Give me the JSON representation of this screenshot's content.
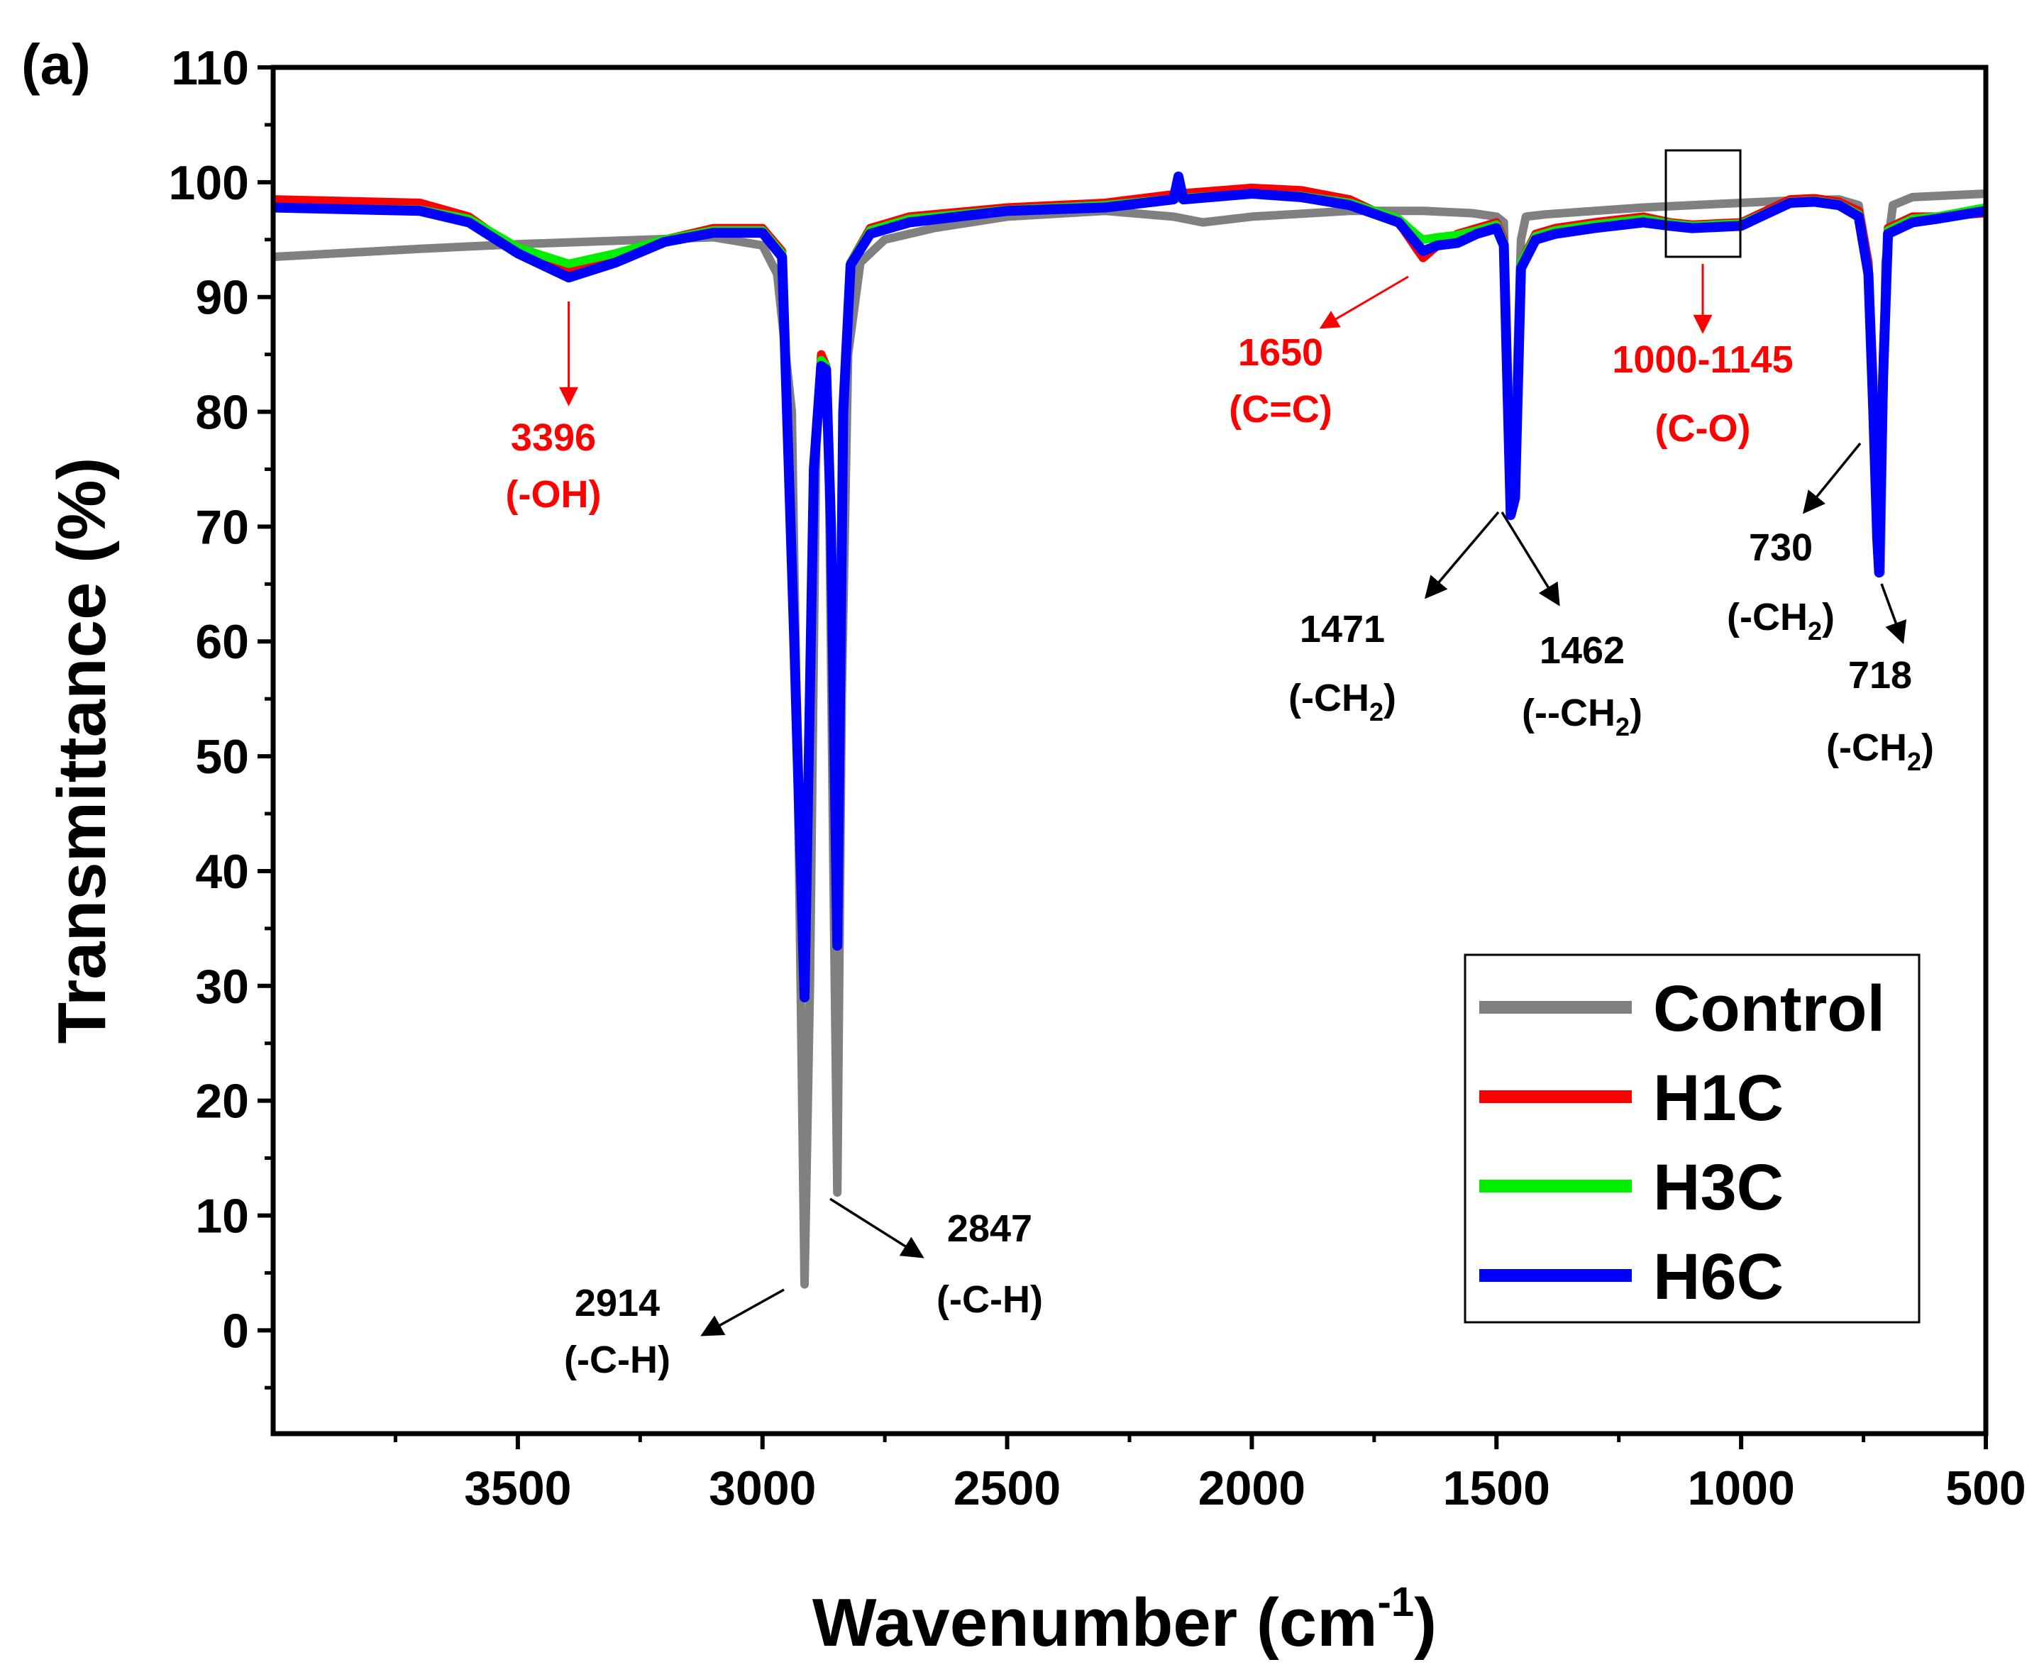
{
  "chart_data": {
    "type": "line",
    "panel_label": "(a)",
    "xlabel": "Wavenumber (cm",
    "xlabel_sup": "-1",
    "xlabel_tail": ")",
    "ylabel": "Transmittance (%)",
    "xlim": [
      4000,
      500
    ],
    "ylim": [
      -9,
      110
    ],
    "x_ticks": [
      3500,
      3000,
      2500,
      2000,
      1500,
      1000,
      500
    ],
    "y_ticks": [
      0,
      10,
      20,
      30,
      40,
      50,
      60,
      70,
      80,
      90,
      100,
      110
    ],
    "grid": false,
    "legend_position": "bottom-right",
    "colors": {
      "Control": "#808080",
      "H1C": "#ff0000",
      "H3C": "#00ee00",
      "H6C": "#0000ff",
      "red_annotation": "#ff0000",
      "black_annotation": "#000000"
    },
    "series": [
      {
        "name": "Control",
        "x": [
          4000,
          3700,
          3500,
          3300,
          3100,
          3000,
          2970,
          2940,
          2925,
          2914,
          2903,
          2890,
          2875,
          2865,
          2855,
          2847,
          2838,
          2825,
          2800,
          2750,
          2650,
          2500,
          2300,
          2160,
          2100,
          2000,
          1800,
          1650,
          1550,
          1500,
          1485,
          1471,
          1462,
          1450,
          1440,
          1400,
          1300,
          1200,
          1100,
          1000,
          900,
          800,
          760,
          740,
          730,
          722,
          715,
          705,
          690,
          650,
          500
        ],
        "y": [
          93.5,
          94.2,
          94.6,
          94.9,
          95.2,
          94.5,
          92,
          80,
          40,
          4,
          30,
          78,
          84,
          78,
          40,
          12,
          55,
          85,
          93,
          95,
          96,
          97,
          97.5,
          97,
          96.5,
          97,
          97.5,
          97.5,
          97.3,
          97,
          96.5,
          72,
          78,
          95,
          97,
          97.2,
          97.5,
          97.8,
          98,
          98.2,
          98.4,
          98.5,
          98,
          93,
          83,
          70,
          66,
          93,
          98,
          98.7,
          99
        ]
      },
      {
        "name": "H1C",
        "x": [
          4000,
          3700,
          3600,
          3500,
          3396,
          3300,
          3200,
          3100,
          3000,
          2960,
          2935,
          2914,
          2895,
          2880,
          2870,
          2860,
          2847,
          2835,
          2820,
          2780,
          2700,
          2500,
          2300,
          2150,
          2000,
          1900,
          1800,
          1700,
          1660,
          1650,
          1620,
          1580,
          1540,
          1500,
          1485,
          1471,
          1462,
          1450,
          1420,
          1380,
          1300,
          1200,
          1145,
          1100,
          1000,
          950,
          900,
          850,
          800,
          760,
          740,
          730,
          722,
          718,
          710,
          700,
          650,
          600,
          500
        ],
        "y": [
          98.5,
          98.2,
          97,
          94,
          92.5,
          93.5,
          95,
          96,
          96,
          94,
          60,
          30,
          75,
          85,
          84,
          70,
          34,
          80,
          93,
          96,
          97,
          97.8,
          98.2,
          99,
          99.5,
          99.3,
          98.5,
          96.5,
          94,
          93.4,
          94.5,
          95.5,
          96,
          96.5,
          95,
          72,
          74,
          93,
          95.5,
          96,
          96.5,
          97,
          96.5,
          96.3,
          96.5,
          97.5,
          98.5,
          98.6,
          98.3,
          97.5,
          93,
          82,
          70,
          66,
          85,
          96,
          97,
          97,
          97.3
        ]
      },
      {
        "name": "H3C",
        "x": [
          4000,
          3700,
          3600,
          3500,
          3396,
          3300,
          3200,
          3100,
          3000,
          2960,
          2935,
          2914,
          2895,
          2880,
          2870,
          2860,
          2847,
          2835,
          2820,
          2780,
          2700,
          2500,
          2300,
          2150,
          2000,
          1900,
          1800,
          1700,
          1660,
          1650,
          1620,
          1580,
          1540,
          1500,
          1485,
          1471,
          1462,
          1450,
          1420,
          1380,
          1300,
          1200,
          1145,
          1100,
          1000,
          950,
          900,
          850,
          800,
          760,
          740,
          730,
          722,
          718,
          710,
          700,
          650,
          600,
          500
        ],
        "y": [
          97.8,
          97.6,
          96.8,
          94.3,
          92.9,
          93.8,
          95,
          95.8,
          95.8,
          93.8,
          60,
          29.5,
          75,
          84.5,
          84,
          70,
          33.5,
          80,
          93,
          95.8,
          96.8,
          97.6,
          98,
          98.6,
          99,
          98.8,
          98.2,
          96.8,
          95.3,
          95,
          95.2,
          95.4,
          95.8,
          96.3,
          94.8,
          71.5,
          73.5,
          93,
          95.3,
          95.8,
          96.3,
          96.8,
          96.4,
          96.2,
          96.4,
          97.3,
          98.3,
          98.4,
          98.1,
          97.2,
          92.5,
          81,
          69.5,
          66,
          84,
          95.8,
          96.8,
          97,
          97.8
        ]
      },
      {
        "name": "H6C",
        "x": [
          4000,
          3700,
          3600,
          3500,
          3396,
          3300,
          3200,
          3100,
          3000,
          2960,
          2935,
          2914,
          2895,
          2880,
          2870,
          2860,
          2847,
          2835,
          2820,
          2780,
          2700,
          2500,
          2300,
          2160,
          2150,
          2140,
          2000,
          1900,
          1800,
          1700,
          1660,
          1650,
          1620,
          1580,
          1540,
          1500,
          1485,
          1471,
          1462,
          1450,
          1420,
          1380,
          1300,
          1200,
          1145,
          1100,
          1000,
          950,
          900,
          850,
          800,
          760,
          740,
          730,
          722,
          718,
          710,
          700,
          650,
          600,
          500
        ],
        "y": [
          97.8,
          97.5,
          96.5,
          93.8,
          91.7,
          93,
          94.8,
          95.6,
          95.6,
          93.5,
          60,
          29,
          75,
          84,
          83.7,
          70,
          33.5,
          80,
          92.8,
          95.5,
          96.5,
          97.5,
          97.8,
          98.5,
          100.5,
          98.5,
          99,
          98.7,
          98,
          96.5,
          94.5,
          94,
          94.5,
          94.7,
          95.5,
          96,
          94.5,
          71,
          72.5,
          92.5,
          95,
          95.5,
          96,
          96.5,
          96.2,
          96,
          96.2,
          97.2,
          98.2,
          98.3,
          98,
          97,
          92,
          80,
          69,
          66,
          83,
          95.5,
          96.5,
          96.8,
          97.5
        ]
      }
    ],
    "annotations": [
      {
        "id": "oh",
        "lines": [
          "3396",
          "(-OH)"
        ],
        "color": "red",
        "at": [
          3396,
          92
        ]
      },
      {
        "id": "cc",
        "lines": [
          "1650",
          "(C=C)"
        ],
        "color": "red",
        "at": [
          1650,
          93.4
        ]
      },
      {
        "id": "co",
        "lines": [
          "1000-1145",
          "(C-O)"
        ],
        "color": "red",
        "range": [
          1145,
          1000
        ]
      },
      {
        "id": "ch2914",
        "lines": [
          "2914",
          "(-C-H)"
        ],
        "color": "black",
        "at": [
          2914,
          4
        ]
      },
      {
        "id": "ch2847",
        "lines": [
          "2847",
          "(-C-H)"
        ],
        "color": "black",
        "at": [
          2847,
          12
        ]
      },
      {
        "id": "ch1471",
        "lines": [
          "1471",
          "(-CH",
          "2",
          ")"
        ],
        "color": "black",
        "at": [
          1471,
          71
        ]
      },
      {
        "id": "ch1462",
        "lines": [
          "1462",
          "(--CH",
          "2",
          ")"
        ],
        "color": "black",
        "at": [
          1462,
          71
        ]
      },
      {
        "id": "ch730",
        "lines": [
          "730",
          "(-CH",
          "2",
          ")"
        ],
        "color": "black",
        "at": [
          730,
          80
        ]
      },
      {
        "id": "ch718",
        "lines": [
          "718",
          "(-CH",
          "2",
          ")"
        ],
        "color": "black",
        "at": [
          718,
          66
        ]
      }
    ]
  }
}
